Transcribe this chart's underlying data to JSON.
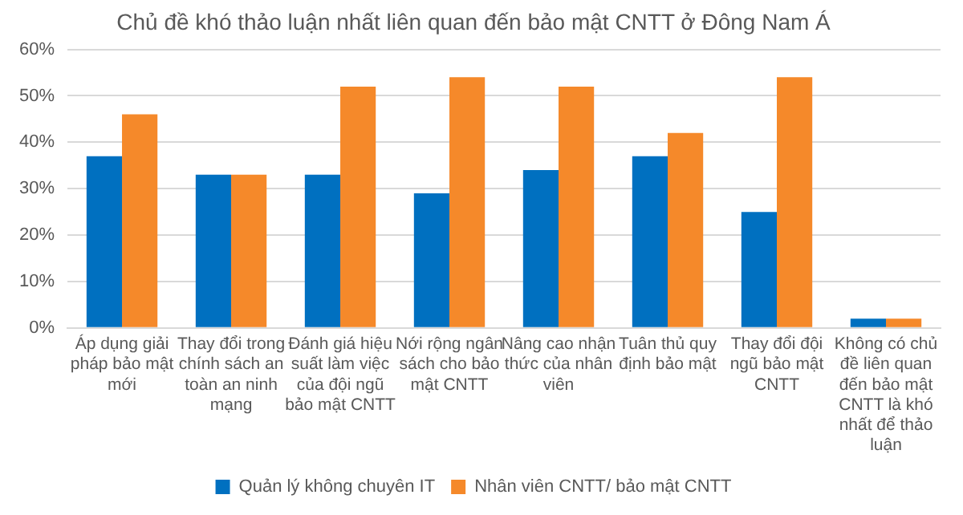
{
  "chart_data": {
    "type": "bar",
    "title": "Chủ đề khó thảo luận nhất liên quan đến bảo mật CNTT ở Đông Nam Á",
    "categories": [
      "Áp dụng giải pháp bảo mật mới",
      "Thay đổi trong chính sách an toàn an ninh mạng",
      "Đánh giá hiệu suất làm việc của đội ngũ bảo mật CNTT",
      "Nới rộng ngân sách cho bảo mật CNTT",
      "Nâng cao nhận thức của nhân viên",
      "Tuân thủ quy định bảo mật",
      "Thay đổi đội ngũ bảo mật CNTT",
      "Không có chủ đề liên quan đến bảo mật CNTT là khó nhất để thảo luận"
    ],
    "series": [
      {
        "name": "Quản lý không chuyên IT",
        "color": "#0070c0",
        "values": [
          37,
          33,
          33,
          29,
          34,
          37,
          25,
          2
        ]
      },
      {
        "name": "Nhân viên CNTT/ bảo mật CNTT",
        "color": "#f5892a",
        "values": [
          46,
          33,
          52,
          54,
          52,
          42,
          54,
          2
        ]
      }
    ],
    "ylim": [
      0,
      60
    ],
    "yticks": [
      {
        "value": 0,
        "label": "0%"
      },
      {
        "value": 10,
        "label": "10%"
      },
      {
        "value": 20,
        "label": "20%"
      },
      {
        "value": 30,
        "label": "30%"
      },
      {
        "value": 40,
        "label": "40%"
      },
      {
        "value": 50,
        "label": "50%"
      },
      {
        "value": 60,
        "label": "60%"
      }
    ],
    "grid": "y",
    "legend": "bottom"
  }
}
